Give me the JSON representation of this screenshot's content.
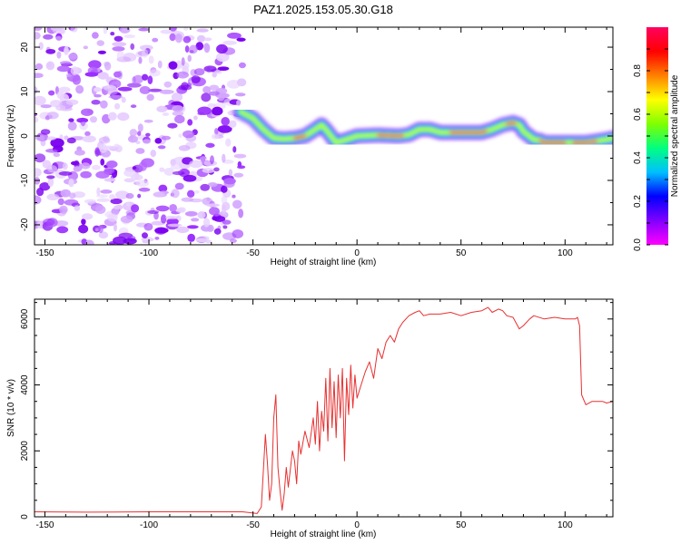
{
  "title": "PAZ1.2025.153.05.30.G18",
  "chart_data": [
    {
      "type": "heatmap",
      "xlabel": "Height of straight line (km)",
      "ylabel": "Frequency (Hz)",
      "xlim": [
        -155,
        123
      ],
      "ylim": [
        -24.5,
        24.5
      ],
      "xticks": [
        "-150",
        "-100",
        "-50",
        "0",
        "50",
        "100"
      ],
      "yticks": [
        "-20",
        "-10",
        "0",
        "10",
        "20"
      ],
      "colorbar": {
        "label": "Normalized spectral amplitude",
        "range": [
          0,
          1
        ],
        "ticks": [
          "0.0",
          "0.2",
          "0.4",
          "0.6",
          "0.8"
        ],
        "colormap": [
          "#ff00ff",
          "#8000ff",
          "#0000ff",
          "#00c0ff",
          "#00ff80",
          "#80ff00",
          "#ffff00",
          "#ff8000",
          "#ff0000",
          "#ff0060"
        ]
      },
      "noise_region_x": [
        -155,
        -55
      ],
      "ridge": {
        "x": [
          -56,
          -50,
          -45,
          -40,
          -35,
          -30,
          -25,
          -20,
          -17,
          -15,
          -10,
          -5,
          0,
          10,
          20,
          25,
          30,
          35,
          40,
          50,
          60,
          65,
          70,
          75,
          78,
          80,
          85,
          88,
          90,
          100,
          110,
          120,
          123
        ],
        "y": [
          5.5,
          4,
          1.5,
          -0.5,
          -0.7,
          -0.5,
          0,
          1.5,
          2.5,
          1.5,
          -1.5,
          -0.8,
          0,
          0.2,
          0,
          0.3,
          1.5,
          1.5,
          0.8,
          0.8,
          0.8,
          1.5,
          2.5,
          3,
          2.5,
          1,
          -0.8,
          -1,
          -1.5,
          -1.5,
          -1.5,
          -0.8,
          -0.5
        ]
      }
    },
    {
      "type": "line",
      "xlabel": "Height of straight line (km)",
      "ylabel": "SNR (10 * v/v)",
      "xlim": [
        -155,
        123
      ],
      "ylim": [
        0,
        6600
      ],
      "xticks": [
        "-150",
        "-100",
        "-50",
        "0",
        "50",
        "100"
      ],
      "yticks": [
        "0",
        "2000",
        "4000",
        "6000"
      ],
      "color": "#e83030",
      "series": [
        {
          "x": [
            -155,
            -130,
            -100,
            -80,
            -55,
            -48,
            -46,
            -44,
            -43,
            -42,
            -41,
            -40,
            -39,
            -38,
            -37,
            -36,
            -35,
            -34,
            -33,
            -31,
            -30,
            -29,
            -28,
            -27,
            -25,
            -23,
            -21,
            -20,
            -19,
            -18,
            -17,
            -16,
            -15,
            -14,
            -13,
            -12,
            -11,
            -10,
            -9,
            -8,
            -7,
            -6,
            -5,
            -4,
            -3,
            -2,
            -1,
            0,
            2,
            4,
            6,
            8,
            10,
            12,
            14,
            16,
            18,
            20,
            22,
            25,
            28,
            30,
            32,
            35,
            40,
            45,
            50,
            55,
            60,
            63,
            65,
            68,
            70,
            72,
            75,
            78,
            80,
            83,
            85,
            90,
            95,
            100,
            105,
            106,
            107,
            108,
            110,
            113,
            115,
            118,
            120,
            123
          ],
          "y": [
            150,
            140,
            150,
            150,
            150,
            100,
            300,
            2500,
            1600,
            500,
            1000,
            3000,
            3700,
            1500,
            800,
            200,
            700,
            1500,
            900,
            2000,
            1700,
            1000,
            2300,
            1900,
            2600,
            2100,
            3000,
            2200,
            3500,
            2000,
            3200,
            2600,
            4200,
            2300,
            4500,
            2700,
            4100,
            2400,
            4300,
            3000,
            4500,
            1700,
            4200,
            3100,
            4600,
            3300,
            4300,
            3600,
            4000,
            4400,
            4700,
            4200,
            5100,
            4800,
            5300,
            5500,
            5300,
            5700,
            5900,
            6100,
            6200,
            6250,
            6100,
            6150,
            6150,
            6200,
            6100,
            6200,
            6250,
            6350,
            6200,
            6300,
            6250,
            6100,
            6050,
            5700,
            5800,
            6000,
            6100,
            6000,
            6050,
            6000,
            6000,
            6050,
            5800,
            3700,
            3400,
            3500,
            3500,
            3500,
            3450,
            3500
          ]
        }
      ]
    }
  ]
}
